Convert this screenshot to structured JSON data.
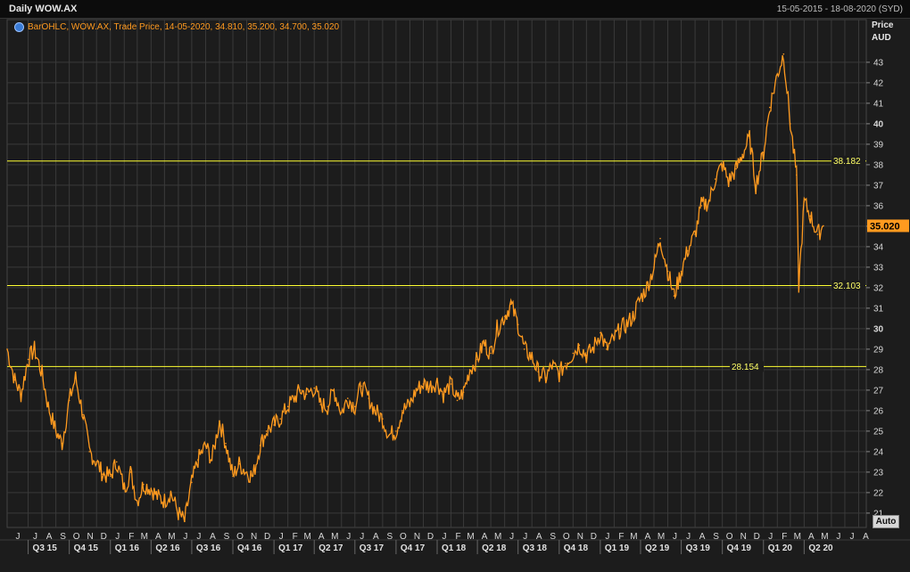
{
  "window": {
    "title": "Daily WOW.AX",
    "date_range": "15-05-2015 - 18-08-2020 (SYD)",
    "legend": "BarOHLC, WOW.AX, Trade Price,  14-05-2020, 34.810, 35.200, 34.700, 35.020",
    "legend_icon": "globe-icon",
    "y_axis_title_1": "Price",
    "y_axis_title_2": "AUD",
    "auto_button": "Auto"
  },
  "colors": {
    "background": "#1c1c1c",
    "grid": "#3a3a3a",
    "series": "#ff9a1f",
    "hline": "#ffff33",
    "last_price_bg": "#ff9a1f"
  },
  "chart_data": {
    "type": "line",
    "ylim": [
      20.3,
      44.3
    ],
    "y_ticks": [
      21,
      22,
      23,
      24,
      25,
      26,
      27,
      28,
      29,
      30,
      31,
      32,
      33,
      34,
      35,
      36,
      37,
      38,
      39,
      40,
      41,
      42,
      43
    ],
    "y_bold_ticks": [
      30,
      35,
      40
    ],
    "x_range": [
      "2015-05-15",
      "2020-08-18"
    ],
    "month_labels": [
      "J",
      "J",
      "A",
      "S",
      "O",
      "N",
      "D",
      "J",
      "F",
      "M",
      "A",
      "M",
      "J",
      "J",
      "A",
      "S",
      "O",
      "N",
      "D",
      "J",
      "F",
      "M",
      "A",
      "M",
      "J",
      "J",
      "A",
      "S",
      "O",
      "N",
      "D",
      "J",
      "F",
      "M",
      "A",
      "M",
      "J",
      "J",
      "A",
      "S",
      "O",
      "N",
      "D",
      "J",
      "F",
      "M",
      "A",
      "M",
      "J",
      "J",
      "A",
      "S",
      "O",
      "N",
      "D",
      "J",
      "F",
      "M",
      "A",
      "M",
      "J",
      "J",
      "A"
    ],
    "month_dates": [
      "2015-05-01",
      "2015-07-01",
      "2015-08-01",
      "2015-09-01",
      "2015-10-01",
      "2015-11-01",
      "2015-12-01",
      "2016-01-01",
      "2016-02-01",
      "2016-03-01",
      "2016-04-01",
      "2016-05-01",
      "2016-06-01",
      "2016-07-01",
      "2016-08-01",
      "2016-09-01",
      "2016-10-01",
      "2016-11-01",
      "2016-12-01",
      "2017-01-01",
      "2017-02-01",
      "2017-03-01",
      "2017-04-01",
      "2017-05-01",
      "2017-06-01",
      "2017-07-01",
      "2017-08-01",
      "2017-09-01",
      "2017-10-01",
      "2017-11-01",
      "2017-12-01",
      "2018-01-01",
      "2018-02-01",
      "2018-03-01",
      "2018-04-01",
      "2018-05-01",
      "2018-06-01",
      "2018-07-01",
      "2018-08-01",
      "2018-09-01",
      "2018-10-01",
      "2018-11-01",
      "2018-12-01",
      "2019-01-01",
      "2019-02-01",
      "2019-03-01",
      "2019-04-01",
      "2019-05-01",
      "2019-06-01",
      "2019-07-01",
      "2019-08-01",
      "2019-09-01",
      "2019-10-01",
      "2019-11-01",
      "2019-12-01",
      "2020-01-01",
      "2020-02-01",
      "2020-03-01",
      "2020-04-01",
      "2020-05-01",
      "2020-06-01",
      "2020-07-01",
      "2020-08-01"
    ],
    "quarter_labels": [
      "Q3 15",
      "Q4 15",
      "Q1 16",
      "Q2 16",
      "Q3 16",
      "Q4 16",
      "Q1 17",
      "Q2 17",
      "Q3 17",
      "Q4 17",
      "Q1 18",
      "Q2 18",
      "Q3 18",
      "Q4 18",
      "Q1 19",
      "Q2 19",
      "Q3 19",
      "Q4 19",
      "Q1 20",
      "Q2 20"
    ],
    "quarter_dates": [
      "2015-07-01",
      "2015-10-01",
      "2016-01-01",
      "2016-04-01",
      "2016-07-01",
      "2016-10-01",
      "2017-01-01",
      "2017-04-01",
      "2017-07-01",
      "2017-10-01",
      "2018-01-01",
      "2018-04-01",
      "2018-07-01",
      "2018-10-01",
      "2019-01-01",
      "2019-04-01",
      "2019-07-01",
      "2019-10-01",
      "2020-01-01",
      "2020-04-01"
    ],
    "horizontal_lines": [
      {
        "value": 38.182,
        "label": "38.182"
      },
      {
        "value": 32.103,
        "label": "32.103"
      },
      {
        "value": 28.154,
        "label": "28.154"
      }
    ],
    "last_price": {
      "value": 35.02,
      "label": "35.020"
    },
    "series": [
      {
        "x": [
          "2015-05-15",
          "2015-06-01",
          "2015-06-15",
          "2015-07-01",
          "2015-07-15",
          "2015-08-01",
          "2015-08-15",
          "2015-09-01",
          "2015-09-15",
          "2015-10-01",
          "2015-10-15",
          "2015-11-01",
          "2015-11-15",
          "2015-12-01",
          "2015-12-15",
          "2016-01-01",
          "2016-01-15",
          "2016-02-01",
          "2016-02-15",
          "2016-03-01",
          "2016-03-15",
          "2016-04-01",
          "2016-04-15",
          "2016-05-01",
          "2016-05-15",
          "2016-06-01",
          "2016-06-15",
          "2016-07-01",
          "2016-07-15",
          "2016-08-01",
          "2016-08-15",
          "2016-09-01",
          "2016-09-15",
          "2016-10-01",
          "2016-10-15",
          "2016-11-01",
          "2016-11-15",
          "2016-12-01",
          "2016-12-15",
          "2017-01-01",
          "2017-01-15",
          "2017-02-01",
          "2017-02-15",
          "2017-03-01",
          "2017-03-15",
          "2017-04-01",
          "2017-04-15",
          "2017-05-01",
          "2017-05-15",
          "2017-06-01",
          "2017-06-15",
          "2017-07-01",
          "2017-07-15",
          "2017-08-01",
          "2017-08-15",
          "2017-09-01",
          "2017-09-15",
          "2017-10-01",
          "2017-10-15",
          "2017-11-01",
          "2017-11-15",
          "2017-12-01",
          "2017-12-15",
          "2018-01-01",
          "2018-01-15",
          "2018-02-01",
          "2018-02-15",
          "2018-03-01",
          "2018-03-15",
          "2018-04-01",
          "2018-04-15",
          "2018-05-01",
          "2018-05-15",
          "2018-06-01",
          "2018-06-15",
          "2018-07-01",
          "2018-07-15",
          "2018-08-01",
          "2018-08-15",
          "2018-09-01",
          "2018-09-15",
          "2018-10-01",
          "2018-10-15",
          "2018-11-01",
          "2018-11-15",
          "2018-12-01",
          "2018-12-15",
          "2019-01-01",
          "2019-01-15",
          "2019-02-01",
          "2019-02-15",
          "2019-03-01",
          "2019-03-15",
          "2019-04-01",
          "2019-04-15",
          "2019-05-01",
          "2019-05-15",
          "2019-06-01",
          "2019-06-15",
          "2019-07-01",
          "2019-07-15",
          "2019-08-01",
          "2019-08-15",
          "2019-09-01",
          "2019-09-15",
          "2019-10-01",
          "2019-10-15",
          "2019-11-01",
          "2019-11-15",
          "2019-12-01",
          "2019-12-15",
          "2020-01-01",
          "2020-01-15",
          "2020-02-01",
          "2020-02-15",
          "2020-03-01",
          "2020-03-15",
          "2020-03-20",
          "2020-04-01",
          "2020-04-15",
          "2020-05-01",
          "2020-05-14"
        ],
        "y": [
          29.0,
          27.5,
          26.8,
          28.5,
          29.0,
          27.8,
          26.2,
          25.0,
          24.4,
          26.5,
          27.6,
          25.8,
          24.0,
          23.5,
          22.9,
          22.8,
          23.5,
          22.2,
          23.0,
          21.6,
          22.4,
          22.2,
          21.8,
          21.6,
          22.0,
          21.0,
          20.6,
          22.5,
          23.6,
          24.3,
          23.6,
          25.5,
          24.4,
          22.8,
          23.4,
          23.0,
          22.8,
          24.3,
          25.0,
          25.3,
          25.6,
          26.2,
          26.6,
          27.0,
          26.8,
          27.1,
          26.3,
          26.2,
          27.0,
          25.9,
          26.6,
          26.2,
          27.2,
          26.6,
          26.0,
          25.6,
          24.8,
          25.0,
          26.0,
          26.3,
          27.0,
          27.3,
          27.2,
          27.4,
          26.8,
          27.3,
          26.5,
          26.9,
          28.0,
          28.5,
          29.3,
          28.8,
          30.0,
          30.6,
          31.2,
          30.2,
          29.0,
          28.6,
          27.9,
          27.6,
          28.2,
          27.8,
          28.3,
          28.8,
          29.2,
          28.7,
          29.0,
          29.8,
          29.0,
          29.5,
          30.0,
          30.2,
          30.6,
          31.5,
          32.0,
          33.0,
          34.4,
          32.8,
          31.6,
          32.8,
          33.8,
          34.6,
          36.0,
          36.2,
          37.3,
          38.0,
          37.2,
          37.8,
          38.5,
          39.3,
          37.0,
          38.6,
          40.8,
          42.4,
          43.4,
          40.0,
          37.5,
          32.1,
          36.2,
          35.5,
          34.6,
          35.02
        ]
      }
    ]
  }
}
